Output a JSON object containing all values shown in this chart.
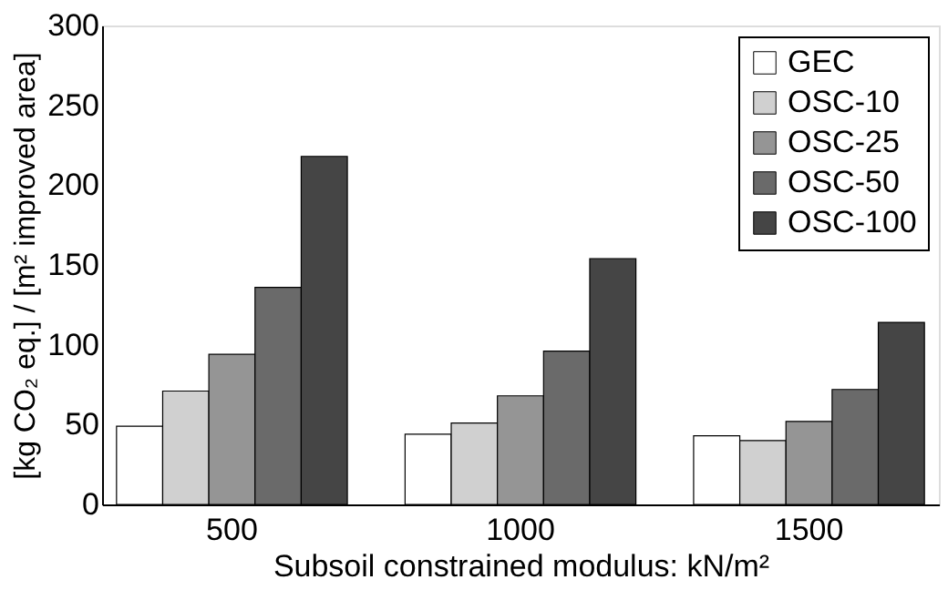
{
  "chart_data": {
    "type": "bar",
    "xlabel": "Subsoil constrained modulus: kN/m²",
    "ylabel": "[kg CO₂ eq.] / [m² improved area]",
    "categories": [
      "500",
      "1000",
      "1500"
    ],
    "series": [
      {
        "name": "GEC",
        "color": "#ffffff",
        "values": [
          49,
          44,
          43
        ]
      },
      {
        "name": "OSC-10",
        "color": "#d0d0d0",
        "values": [
          71,
          51,
          40
        ]
      },
      {
        "name": "OSC-25",
        "color": "#959595",
        "values": [
          94,
          68,
          52
        ]
      },
      {
        "name": "OSC-50",
        "color": "#6a6a6a",
        "values": [
          136,
          96,
          72
        ]
      },
      {
        "name": "OSC-100",
        "color": "#454545",
        "values": [
          218,
          154,
          114
        ]
      }
    ],
    "ylim": [
      0,
      300
    ],
    "yticks": [
      0,
      50,
      100,
      150,
      200,
      250,
      300
    ],
    "grid": false,
    "legend": "top right"
  }
}
